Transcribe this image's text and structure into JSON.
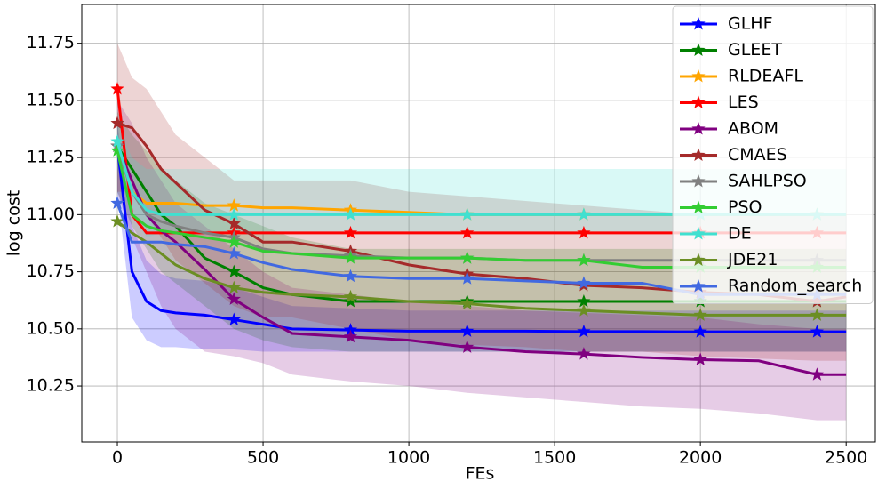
{
  "chart_data": {
    "type": "line",
    "xlabel": "FEs",
    "ylabel": "log cost",
    "x": [
      0,
      50,
      100,
      150,
      200,
      300,
      400,
      500,
      600,
      800,
      1000,
      1200,
      1400,
      1600,
      1800,
      2000,
      2200,
      2400,
      2500
    ],
    "xlim": [
      -122,
      2600
    ],
    "ylim": [
      10.005,
      11.92
    ],
    "xticks": [
      0,
      500,
      1000,
      1500,
      2000,
      2500
    ],
    "yticks": [
      10.25,
      {
        "value": 10.5,
        "label": "10.50"
      },
      10.75,
      {
        "value": 11.0,
        "label": "11.00"
      },
      11.25,
      {
        "value": 11.5,
        "label": "11.50"
      },
      11.75
    ],
    "grid": true,
    "legend": "upper right",
    "series": [
      {
        "name": "GLHF",
        "color": "#0000ff",
        "values": [
          11.3,
          10.75,
          10.62,
          10.58,
          10.57,
          10.56,
          10.54,
          10.52,
          10.5,
          10.495,
          10.49,
          10.49,
          10.49,
          10.488,
          10.488,
          10.487,
          10.487,
          10.487,
          10.487
        ],
        "lower": [
          11.1,
          10.55,
          10.45,
          10.42,
          10.42,
          10.41,
          10.41,
          10.4,
          10.4,
          10.4,
          10.4,
          10.4,
          10.4,
          10.4,
          10.4,
          10.4,
          10.4,
          10.4,
          10.4
        ],
        "upper": [
          11.4,
          10.95,
          10.8,
          10.74,
          10.72,
          10.71,
          10.68,
          10.64,
          10.6,
          10.59,
          10.58,
          10.58,
          10.58,
          10.58,
          10.58,
          10.58,
          10.58,
          10.58,
          10.58
        ]
      },
      {
        "name": "GLEET",
        "color": "#008000",
        "values": [
          11.3,
          11.2,
          11.1,
          11.0,
          10.95,
          10.81,
          10.75,
          10.68,
          10.65,
          10.62,
          10.62,
          10.62,
          10.62,
          10.62,
          10.62,
          10.62,
          10.62,
          10.62,
          10.62
        ],
        "lower": [
          11.1,
          10.95,
          10.85,
          10.75,
          10.7,
          10.6,
          10.5,
          10.45,
          10.42,
          10.4,
          10.4,
          10.4,
          10.4,
          10.4,
          10.4,
          10.4,
          10.4,
          10.4,
          10.4
        ],
        "upper": [
          11.45,
          11.35,
          11.28,
          11.2,
          11.15,
          11.05,
          11.0,
          10.95,
          10.9,
          10.85,
          10.85,
          10.85,
          10.85,
          10.85,
          10.85,
          10.85,
          10.85,
          10.85,
          10.85
        ]
      },
      {
        "name": "RLDEAFL",
        "color": "#ffa500",
        "values": [
          11.3,
          11.1,
          11.05,
          11.05,
          11.05,
          11.04,
          11.04,
          11.03,
          11.03,
          11.02,
          11.01,
          11.0,
          11.0,
          11.0,
          11.0,
          11.0,
          11.0,
          11.0,
          11.0
        ]
      },
      {
        "name": "LES",
        "color": "#ff0000",
        "values": [
          11.55,
          11.0,
          10.92,
          10.92,
          10.92,
          10.92,
          10.92,
          10.92,
          10.92,
          10.92,
          10.92,
          10.92,
          10.92,
          10.92,
          10.92,
          10.92,
          10.92,
          10.92,
          10.92
        ]
      },
      {
        "name": "ABOM",
        "color": "#800080",
        "values": [
          11.3,
          11.15,
          11.0,
          10.93,
          10.88,
          10.76,
          10.63,
          10.55,
          10.48,
          10.465,
          10.45,
          10.42,
          10.4,
          10.39,
          10.375,
          10.365,
          10.36,
          10.3,
          10.3
        ],
        "lower": [
          11.1,
          10.9,
          10.75,
          10.6,
          10.5,
          10.4,
          10.38,
          10.35,
          10.3,
          10.27,
          10.25,
          10.22,
          10.2,
          10.18,
          10.16,
          10.15,
          10.13,
          10.1,
          10.1
        ],
        "upper": [
          11.5,
          11.4,
          11.25,
          11.15,
          11.05,
          10.95,
          10.85,
          10.75,
          10.68,
          10.65,
          10.62,
          10.6,
          10.58,
          10.57,
          10.56,
          10.55,
          10.52,
          10.5,
          10.5
        ]
      },
      {
        "name": "CMAES",
        "color": "#a52a2a",
        "values": [
          11.4,
          11.38,
          11.3,
          11.2,
          11.14,
          11.02,
          10.96,
          10.88,
          10.88,
          10.84,
          10.78,
          10.74,
          10.72,
          10.69,
          10.68,
          10.66,
          10.65,
          10.62,
          10.64
        ],
        "lower": [
          11.1,
          11.1,
          11.0,
          10.9,
          10.8,
          10.7,
          10.6,
          10.55,
          10.55,
          10.5,
          10.45,
          10.43,
          10.42,
          10.4,
          10.4,
          10.38,
          10.37,
          10.36,
          10.36
        ],
        "upper": [
          11.75,
          11.6,
          11.55,
          11.45,
          11.35,
          11.25,
          11.15,
          11.15,
          11.15,
          11.15,
          11.1,
          11.08,
          11.06,
          11.04,
          11.02,
          11.0,
          11.0,
          11.0,
          11.0
        ]
      },
      {
        "name": "SAHLPSO",
        "color": "#808080",
        "values": [
          11.3,
          11.1,
          11.0,
          10.97,
          10.95,
          10.92,
          10.9,
          10.85,
          10.83,
          10.82,
          10.81,
          10.81,
          10.8,
          10.8,
          10.8,
          10.8,
          10.8,
          10.8,
          10.8
        ]
      },
      {
        "name": "PSO",
        "color": "#32cd32",
        "values": [
          11.28,
          11.0,
          10.95,
          10.93,
          10.92,
          10.9,
          10.88,
          10.84,
          10.83,
          10.81,
          10.81,
          10.81,
          10.8,
          10.8,
          10.77,
          10.77,
          10.77,
          10.77,
          10.77
        ]
      },
      {
        "name": "DE",
        "color": "#40e0d0",
        "values": [
          11.32,
          11.1,
          11.02,
          11.0,
          11.0,
          11.0,
          11.0,
          11.0,
          11.0,
          11.0,
          11.0,
          11.0,
          11.0,
          11.0,
          11.0,
          11.0,
          11.0,
          11.0,
          11.0
        ],
        "lower": [
          11.2,
          11.0,
          10.9,
          10.92,
          10.92,
          10.92,
          10.92,
          10.92,
          10.92,
          10.92,
          10.92,
          10.92,
          10.92,
          10.92,
          10.92,
          10.92,
          10.92,
          10.92,
          10.92
        ],
        "upper": [
          11.4,
          11.25,
          11.2,
          11.2,
          11.2,
          11.2,
          11.2,
          11.2,
          11.2,
          11.2,
          11.2,
          11.2,
          11.2,
          11.2,
          11.2,
          11.2,
          11.2,
          11.2,
          11.2
        ]
      },
      {
        "name": "JDE21",
        "color": "#6b8e23",
        "values": [
          10.97,
          10.92,
          10.88,
          10.83,
          10.78,
          10.72,
          10.68,
          10.66,
          10.65,
          10.64,
          10.62,
          10.61,
          10.59,
          10.58,
          10.57,
          10.56,
          10.56,
          10.56,
          10.56
        ]
      },
      {
        "name": "Random_search",
        "color": "#4169e1",
        "values": [
          11.05,
          10.88,
          10.88,
          10.88,
          10.87,
          10.86,
          10.83,
          10.79,
          10.76,
          10.73,
          10.72,
          10.72,
          10.71,
          10.7,
          10.7,
          10.65,
          10.65,
          10.65,
          10.65
        ]
      }
    ]
  }
}
